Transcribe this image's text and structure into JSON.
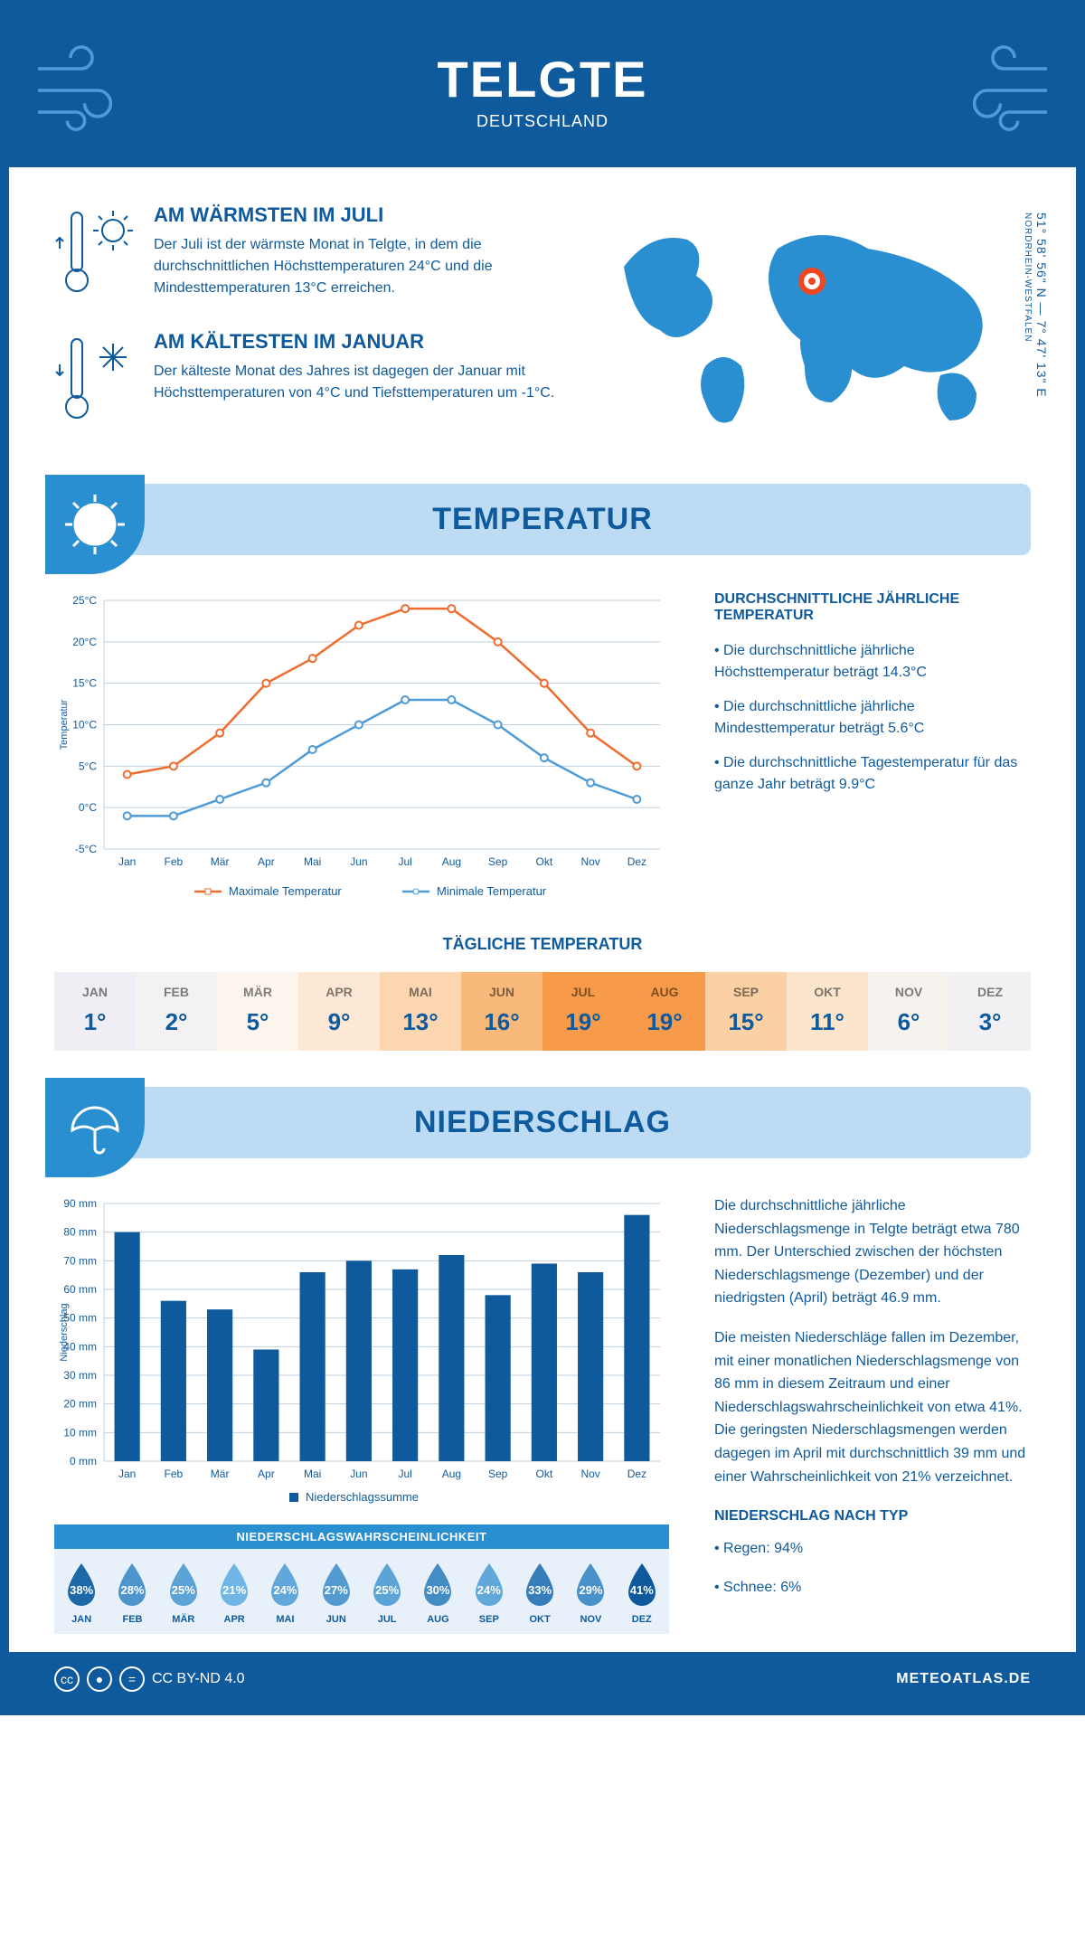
{
  "colors": {
    "primary": "#0f5a9c",
    "light_blue": "#bddcf4",
    "mid_blue": "#2a8fd0",
    "grid": "#bfcfdd",
    "orange_line": "#ef6c2f",
    "blue_line": "#4e9bd8",
    "bar": "#0f5a9c"
  },
  "header": {
    "title": "TELGTE",
    "country": "DEUTSCHLAND"
  },
  "coords": {
    "lat": "51° 58' 56\" N — 7° 47' 13\" E",
    "region": "NORDRHEIN-WESTFALEN"
  },
  "facts": {
    "warm": {
      "title": "AM WÄRMSTEN IM JULI",
      "text": "Der Juli ist der wärmste Monat in Telgte, in dem die durchschnittlichen Höchsttemperaturen 24°C und die Mindesttemperaturen 13°C erreichen."
    },
    "cold": {
      "title": "AM KÄLTESTEN IM JANUAR",
      "text": "Der kälteste Monat des Jahres ist dagegen der Januar mit Höchsttemperaturen von 4°C und Tiefsttemperaturen um -1°C."
    }
  },
  "temp_section": {
    "title": "TEMPERATUR"
  },
  "temp_chart": {
    "type": "line",
    "months": [
      "Jan",
      "Feb",
      "Mär",
      "Apr",
      "Mai",
      "Jun",
      "Jul",
      "Aug",
      "Sep",
      "Okt",
      "Nov",
      "Dez"
    ],
    "max_values": [
      4,
      5,
      9,
      15,
      18,
      22,
      24,
      24,
      20,
      15,
      9,
      5
    ],
    "min_values": [
      -1,
      -1,
      1,
      3,
      7,
      10,
      13,
      13,
      10,
      6,
      3,
      1
    ],
    "y_min": -5,
    "y_max": 25,
    "y_step": 5,
    "y_unit": "°C",
    "y_label": "Temperatur",
    "max_color": "#ef6c2f",
    "min_color": "#4e9bd8",
    "legend_max": "Maximale Temperatur",
    "legend_min": "Minimale Temperatur",
    "line_width": 2.5,
    "marker_r": 4
  },
  "temp_text": {
    "heading": "DURCHSCHNITTLICHE JÄHRLICHE TEMPERATUR",
    "b1": "• Die durchschnittliche jährliche Höchsttemperatur beträgt 14.3°C",
    "b2": "• Die durchschnittliche jährliche Mindesttemperatur beträgt 5.6°C",
    "b3": "• Die durchschnittliche Tagestemperatur für das ganze Jahr beträgt 9.9°C"
  },
  "daily": {
    "title": "TÄGLICHE TEMPERATUR",
    "months": [
      "JAN",
      "FEB",
      "MÄR",
      "APR",
      "MAI",
      "JUN",
      "JUL",
      "AUG",
      "SEP",
      "OKT",
      "NOV",
      "DEZ"
    ],
    "values": [
      "1°",
      "2°",
      "5°",
      "9°",
      "13°",
      "16°",
      "19°",
      "19°",
      "15°",
      "11°",
      "6°",
      "3°"
    ],
    "colors": [
      "#f0eef4",
      "#f3f1f1",
      "#fdf6ef",
      "#fce8d4",
      "#fbd6b0",
      "#f9b97a",
      "#f79b4a",
      "#f79b4a",
      "#fbd0a4",
      "#fce5cd",
      "#f6f3ee",
      "#f2f0f3"
    ]
  },
  "precip_section": {
    "title": "NIEDERSCHLAG"
  },
  "precip_chart": {
    "type": "bar",
    "months": [
      "Jan",
      "Feb",
      "Mär",
      "Apr",
      "Mai",
      "Jun",
      "Jul",
      "Aug",
      "Sep",
      "Okt",
      "Nov",
      "Dez"
    ],
    "values": [
      80,
      56,
      53,
      39,
      66,
      70,
      67,
      72,
      58,
      69,
      66,
      86
    ],
    "y_min": 0,
    "y_max": 90,
    "y_step": 10,
    "y_unit": " mm",
    "y_label": "Niederschlag",
    "bar_color": "#0f5a9c",
    "bar_width_ratio": 0.55,
    "legend": "Niederschlagssumme"
  },
  "precip_text": {
    "p1": "Die durchschnittliche jährliche Niederschlagsmenge in Telgte beträgt etwa 780 mm. Der Unterschied zwischen der höchsten Niederschlagsmenge (Dezember) und der niedrigsten (April) beträgt 46.9 mm.",
    "p2": "Die meisten Niederschläge fallen im Dezember, mit einer monatlichen Niederschlagsmenge von 86 mm in diesem Zeitraum und einer Niederschlagswahrscheinlichkeit von etwa 41%. Die geringsten Niederschlagsmengen werden dagegen im April mit durchschnittlich 39 mm und einer Wahrscheinlichkeit von 21% verzeichnet.",
    "type_heading": "NIEDERSCHLAG NACH TYP",
    "type_1": "• Regen: 94%",
    "type_2": "• Schnee: 6%"
  },
  "prob": {
    "title": "NIEDERSCHLAGSWAHRSCHEINLICHKEIT",
    "months": [
      "JAN",
      "FEB",
      "MÄR",
      "APR",
      "MAI",
      "JUN",
      "JUL",
      "AUG",
      "SEP",
      "OKT",
      "NOV",
      "DEZ"
    ],
    "values": [
      38,
      28,
      25,
      21,
      24,
      27,
      25,
      30,
      24,
      33,
      29,
      41
    ],
    "color_scale_min": "#6fb5e5",
    "color_scale_max": "#0f5a9c"
  },
  "footer": {
    "license": "CC BY-ND 4.0",
    "site": "METEOATLAS.DE"
  }
}
